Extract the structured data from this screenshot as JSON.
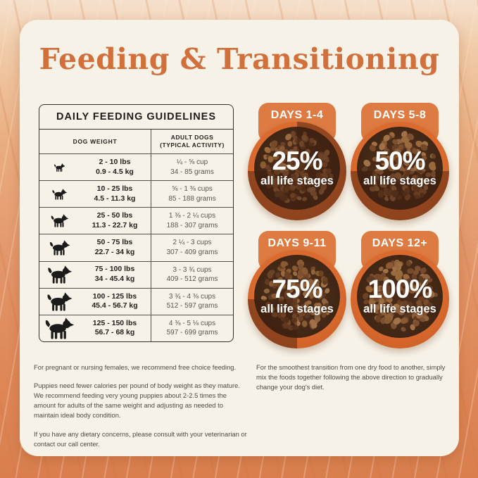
{
  "title": "Feeding & Transitioning",
  "table": {
    "title": "DAILY FEEDING GUIDELINES",
    "columns": {
      "weight": "DOG WEIGHT",
      "adult_line1": "ADULT DOGS",
      "adult_line2": "(TYPICAL ACTIVITY)"
    },
    "rows": [
      {
        "icon": "chihuahua-icon",
        "lbs": "2 - 10 lbs",
        "kg": "0.9 - 4.5 kg",
        "cups": "¼ - ⅝ cup",
        "grams": "34 - 85 grams"
      },
      {
        "icon": "french-bulldog-icon",
        "lbs": "10 - 25 lbs",
        "kg": "4.5 - 11.3 kg",
        "cups": "⅝ - 1 ⅜ cups",
        "grams": "85 - 188 grams"
      },
      {
        "icon": "terrier-icon",
        "lbs": "25 - 50 lbs",
        "kg": "11.3 - 22.7 kg",
        "cups": "1 ⅜ - 2 ¼ cups",
        "grams": "188 - 307 grams"
      },
      {
        "icon": "medium-dog-icon",
        "lbs": "50 - 75 lbs",
        "kg": "22.7 - 34 kg",
        "cups": "2 ¼ - 3 cups",
        "grams": "307 - 409 grams"
      },
      {
        "icon": "great-dane-icon",
        "lbs": "75 - 100 lbs",
        "kg": "34 - 45.4 kg",
        "cups": "3 - 3 ¾ cups",
        "grams": "409 - 512 grams"
      },
      {
        "icon": "labrador-icon",
        "lbs": "100 - 125 lbs",
        "kg": "45.4 - 56.7 kg",
        "cups": "3 ¾ - 4 ⅜ cups",
        "grams": "512 - 597 grams"
      },
      {
        "icon": "bernese-icon",
        "lbs": "125 - 150 lbs",
        "kg": "56.7 - 68 kg",
        "cups": "4 ⅜ - 5 ⅛ cups",
        "grams": "597 - 699 grams"
      }
    ]
  },
  "transition": {
    "stages": [
      {
        "days": "DAYS 1-4",
        "percent": "25%",
        "new_food_pct": 25,
        "label": "all life stages"
      },
      {
        "days": "DAYS 5-8",
        "percent": "50%",
        "new_food_pct": 50,
        "label": "all life stages"
      },
      {
        "days": "DAYS 9-11",
        "percent": "75%",
        "new_food_pct": 75,
        "label": "all life stages"
      },
      {
        "days": "DAYS 12+",
        "percent": "100%",
        "new_food_pct": 100,
        "label": "all life stages"
      }
    ]
  },
  "notes": {
    "left": [
      "For pregnant or nursing females, we recommend free choice feeding.",
      "Puppies need fewer calories per pound of body weight as they mature. We recommend feeding very young puppies about 2-2.5 times the amount for adults of the same weight and adjusting as needed to maintain ideal body condition.",
      "If you have any dietary concerns, please consult with your veterinarian or contact our call center."
    ],
    "right": "For the smoothest transition from one dry food to another, simply mix the foods together following the above direction to gradually change your dog's diet."
  },
  "colors": {
    "accent_orange": "#d2703c",
    "badge_orange": "#dd7b42",
    "bowl_rim_orange": "#d2602a",
    "old_food_overlay": "rgba(61,28,13,0.45)",
    "card_background": "#f7f2e7"
  }
}
